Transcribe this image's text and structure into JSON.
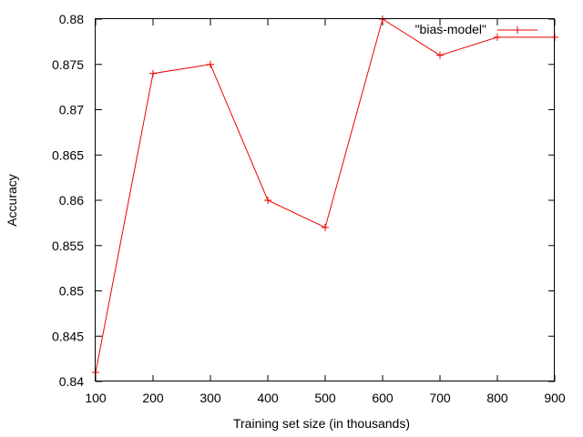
{
  "chart_data": {
    "type": "line",
    "title": "",
    "xlabel": "Training set size (in thousands)",
    "ylabel": "Accuracy",
    "xlim": [
      100,
      900
    ],
    "ylim": [
      0.84,
      0.88
    ],
    "xticks": [
      "100",
      "200",
      "300",
      "400",
      "500",
      "600",
      "700",
      "800",
      "900"
    ],
    "yticks": [
      "0.84",
      "0.845",
      "0.85",
      "0.855",
      "0.86",
      "0.865",
      "0.87",
      "0.875",
      "0.88"
    ],
    "grid": false,
    "legend_position": "top-right",
    "series": [
      {
        "name": "\"bias-model\"",
        "color": "#ee0000",
        "marker": "plus",
        "x": [
          100,
          200,
          300,
          400,
          500,
          600,
          700,
          800,
          900
        ],
        "y": [
          0.841,
          0.874,
          0.875,
          0.86,
          0.857,
          0.88,
          0.876,
          0.878,
          0.878
        ]
      }
    ]
  }
}
